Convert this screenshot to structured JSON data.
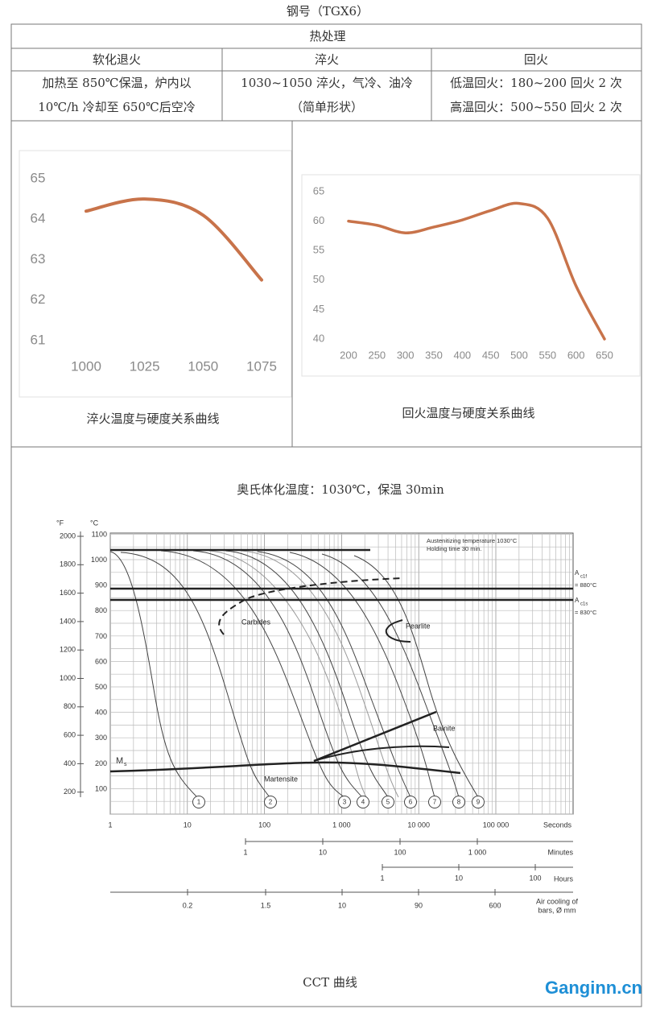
{
  "title": "钢号（TGX6）",
  "table": {
    "title": "热处理",
    "header": [
      "软化退火",
      "淬火",
      "回火"
    ],
    "rows": [
      [
        [
          "加热至 850℃保温，炉内以",
          "10℃/h 冷却至 650℃后空冷"
        ],
        [
          "1030~1050 淬火，气冷、油冷",
          "（简单形状）"
        ],
        [
          "低温回火：180~200 回火 2 次",
          "高温回火：500~550 回火 2 次"
        ]
      ]
    ]
  },
  "chart_data": [
    {
      "type": "line",
      "title": "淬火温度与硬度关系曲线",
      "x": [
        1000,
        1025,
        1050,
        1075
      ],
      "values": [
        64.2,
        64.5,
        64.1,
        62.5
      ],
      "color": "#c8734a",
      "xlim": [
        1000,
        1075
      ],
      "xticks": [
        1000,
        1025,
        1050,
        1075
      ],
      "ylim": [
        61,
        65
      ],
      "yticks": [
        61,
        62,
        63,
        64,
        65
      ],
      "grid": false
    },
    {
      "type": "line",
      "title": "回火温度与硬度关系曲线",
      "x": [
        200,
        250,
        300,
        350,
        400,
        450,
        500,
        550,
        600,
        650
      ],
      "values": [
        60,
        59.3,
        58,
        59,
        60.2,
        61.8,
        63,
        60.5,
        49,
        40
      ],
      "color": "#c8734a",
      "xlim": [
        200,
        650
      ],
      "xticks": [
        200,
        250,
        300,
        350,
        400,
        450,
        500,
        550,
        600,
        650
      ],
      "ylim": [
        40,
        65
      ],
      "yticks": [
        40,
        45,
        50,
        55,
        60,
        65
      ],
      "grid": false
    }
  ],
  "cct": {
    "title": "奥氏体化温度：1030℃，保温 30min",
    "caption": "CCT 曲线",
    "f_unit": "°F",
    "c_unit": "°C",
    "f_ticks": [
      2000,
      1800,
      1600,
      1400,
      1200,
      1000,
      800,
      600,
      400,
      200
    ],
    "c_ticks": [
      1100,
      1000,
      900,
      800,
      700,
      600,
      500,
      400,
      300,
      200,
      100
    ],
    "note": [
      "Austenitizing temperature 1030°C",
      "Holding time 30 min."
    ],
    "ac1f": [
      "A",
      "c1f",
      "= 880°C"
    ],
    "ac1s": [
      "A",
      "c1s",
      "= 830°C"
    ],
    "ms": [
      "M",
      "s"
    ],
    "phases": [
      "Carbides",
      "Pearlite",
      "Bainite",
      "Martensite"
    ],
    "curves": [
      "1",
      "2",
      "3",
      "4",
      "5",
      "6",
      "7",
      "8",
      "9"
    ],
    "seconds": [
      "1",
      "10",
      "100",
      "1 000",
      "10 000",
      "100 000"
    ],
    "seconds_unit": "Seconds",
    "minutes": [
      "1",
      "10",
      "100",
      "1 000"
    ],
    "minutes_unit": "Minutes",
    "hours": [
      "1",
      "10",
      "100"
    ],
    "hours_unit": "Hours",
    "bars": [
      "0.2",
      "1.5",
      "10",
      "90",
      "600"
    ],
    "bars_unit": [
      "Air cooling of",
      "bars, Ø mm"
    ]
  },
  "watermark": "Ganginn.cn"
}
